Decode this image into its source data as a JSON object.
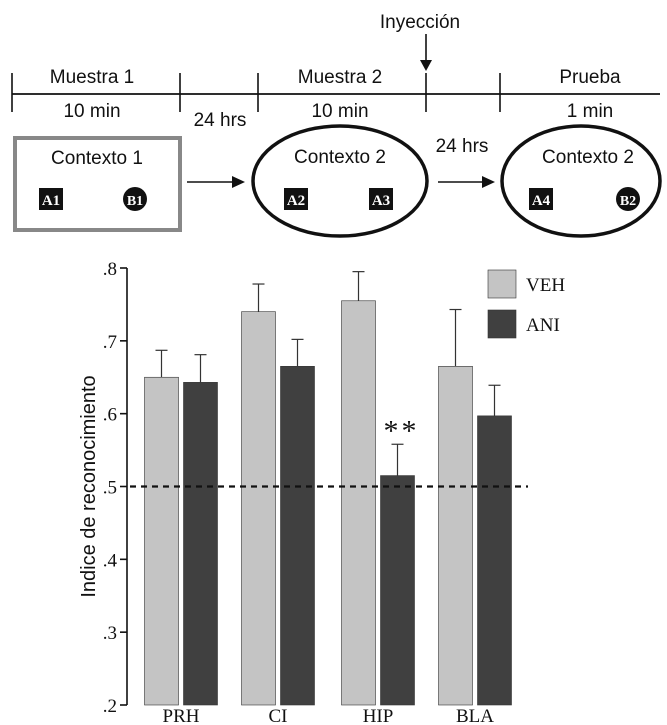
{
  "protocol": {
    "injection_label": "Inyección",
    "phases": [
      {
        "name": "Muestra 1",
        "duration": "10 min"
      },
      {
        "name": "Muestra 2",
        "duration": "10 min"
      },
      {
        "name": "Prueba",
        "duration": "1 min"
      }
    ],
    "delays": [
      "24 hrs",
      "24 hrs"
    ],
    "contexts": [
      {
        "label": "Contexto 1",
        "shape": "rectangle",
        "objects": [
          "A1",
          "B1"
        ]
      },
      {
        "label": "Contexto 2",
        "shape": "ellipse",
        "objects": [
          "A2",
          "A3"
        ]
      },
      {
        "label": "Contexto 2",
        "shape": "ellipse",
        "objects": [
          "A4",
          "B2"
        ]
      }
    ]
  },
  "chart_data": {
    "type": "bar",
    "categories": [
      "PRH",
      "CI",
      "HIP",
      "BLA"
    ],
    "series": [
      {
        "name": "VEH",
        "color": "#c4c4c4",
        "values": [
          0.65,
          0.74,
          0.755,
          0.665
        ],
        "errors": [
          0.037,
          0.038,
          0.04,
          0.078
        ]
      },
      {
        "name": "ANI",
        "color": "#404040",
        "values": [
          0.643,
          0.665,
          0.515,
          0.597
        ],
        "errors": [
          0.038,
          0.037,
          0.043,
          0.042
        ]
      }
    ],
    "ylabel": "Indice de reconocimiento",
    "ylim": [
      0.2,
      0.8
    ],
    "yticks": [
      ".2",
      ".3",
      ".4",
      ".5",
      ".6",
      ".7",
      ".8"
    ],
    "reference_line": 0.5,
    "significance": {
      "category": "HIP",
      "series": "ANI",
      "label": "**"
    },
    "legend_position": "top-right"
  }
}
